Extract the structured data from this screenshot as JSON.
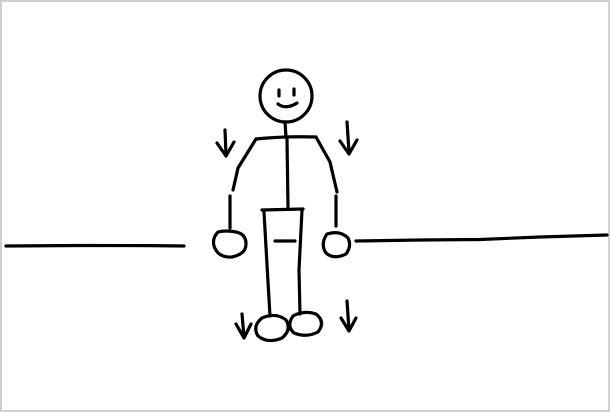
{
  "canvas": {
    "background": "#ffffff",
    "border_color": "#cfcfcf",
    "ink_color": "#000000"
  },
  "icons": {
    "figure": "stick-figure",
    "arrows": [
      "down-arrow-icon",
      "down-arrow-icon",
      "down-arrow-icon",
      "down-arrow-icon"
    ]
  }
}
